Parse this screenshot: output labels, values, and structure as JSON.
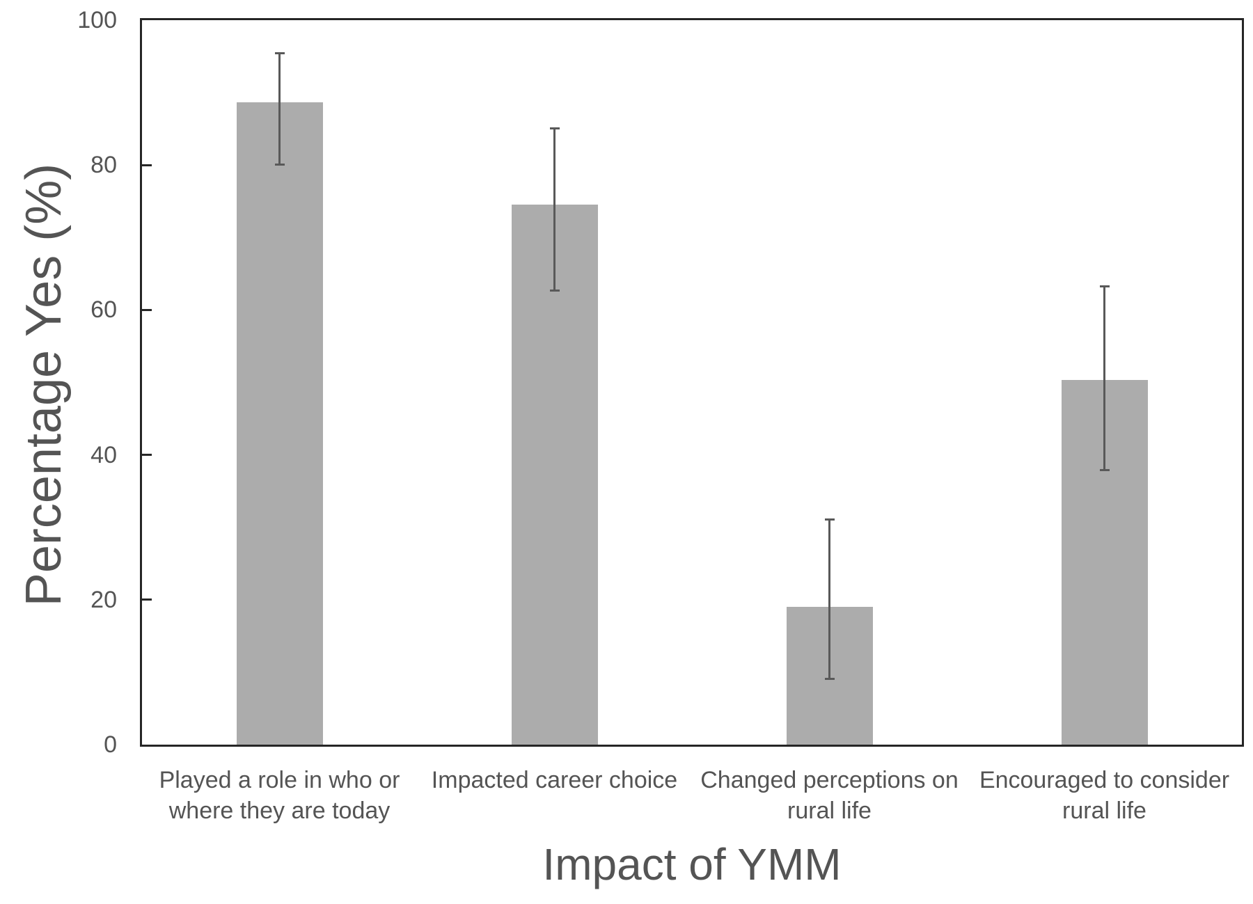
{
  "chart_data": {
    "type": "bar",
    "title": "",
    "xlabel": "Impact of YMM",
    "ylabel": "Percentage Yes (%)",
    "categories": [
      "Played a role in who or where they are today",
      "Impacted career choice",
      "Changed perceptions on rural life",
      "Encouraged  to consider rural life"
    ],
    "values": [
      88.7,
      74.5,
      19,
      50.3
    ],
    "error_low": [
      80.1,
      62.7,
      9.1,
      37.9
    ],
    "error_high": [
      95.4,
      85.1,
      31.1,
      63.3
    ],
    "ylim": [
      0,
      100
    ],
    "yticks": [
      0,
      20,
      40,
      60,
      80,
      100
    ],
    "grid": false,
    "legend": false,
    "layout_hints": {
      "error_bar_style": "caps-both-ends",
      "axis_frame": "full-box",
      "tick_direction": "inside"
    },
    "colors": {
      "bar_fill": "#acacac",
      "error_bar": "#595959",
      "axis_frame": "#262626",
      "text": "#545454",
      "background": "#ffffff"
    }
  }
}
